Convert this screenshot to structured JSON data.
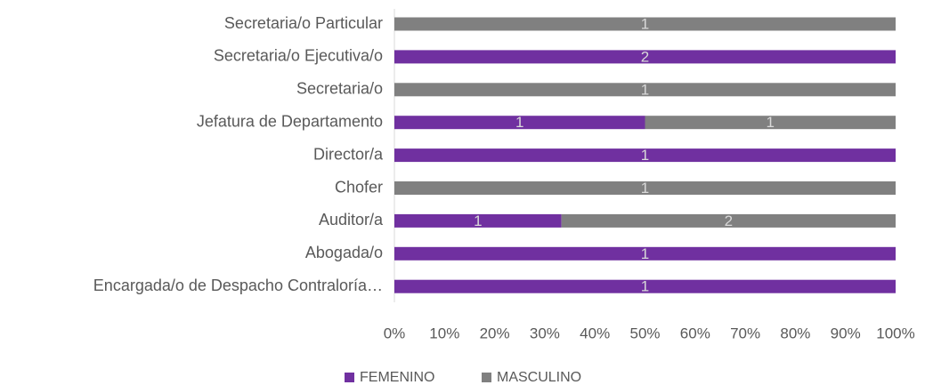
{
  "chart_data": {
    "type": "bar",
    "orientation": "horizontal",
    "stacked": "percent",
    "categories": [
      "Secretaria/o Particular",
      "Secretaria/o Ejecutiva/o",
      "Secretaria/o",
      "Jefatura de Departamento",
      "Director/a",
      "Chofer",
      "Auditor/a",
      "Abogada/o",
      "Encargada/o de Despacho Contraloría…"
    ],
    "series": [
      {
        "name": "FEMENINO",
        "color": "#7030a0",
        "values": [
          null,
          2,
          null,
          1,
          1,
          null,
          1,
          1,
          1
        ]
      },
      {
        "name": "MASCULINO",
        "color": "#808080",
        "values": [
          1,
          null,
          1,
          1,
          null,
          1,
          2,
          null,
          null
        ]
      }
    ],
    "xlim": [
      0,
      100
    ],
    "xticks": [
      {
        "value": 0,
        "label": "0%"
      },
      {
        "value": 10,
        "label": "10%"
      },
      {
        "value": 20,
        "label": "20%"
      },
      {
        "value": 30,
        "label": "30%"
      },
      {
        "value": 40,
        "label": "40%"
      },
      {
        "value": 50,
        "label": "50%"
      },
      {
        "value": 60,
        "label": "60%"
      },
      {
        "value": 70,
        "label": "70%"
      },
      {
        "value": 80,
        "label": "80%"
      },
      {
        "value": 90,
        "label": "90%"
      },
      {
        "value": 100,
        "label": "100%"
      }
    ],
    "grid": false,
    "legend": "bottom"
  }
}
